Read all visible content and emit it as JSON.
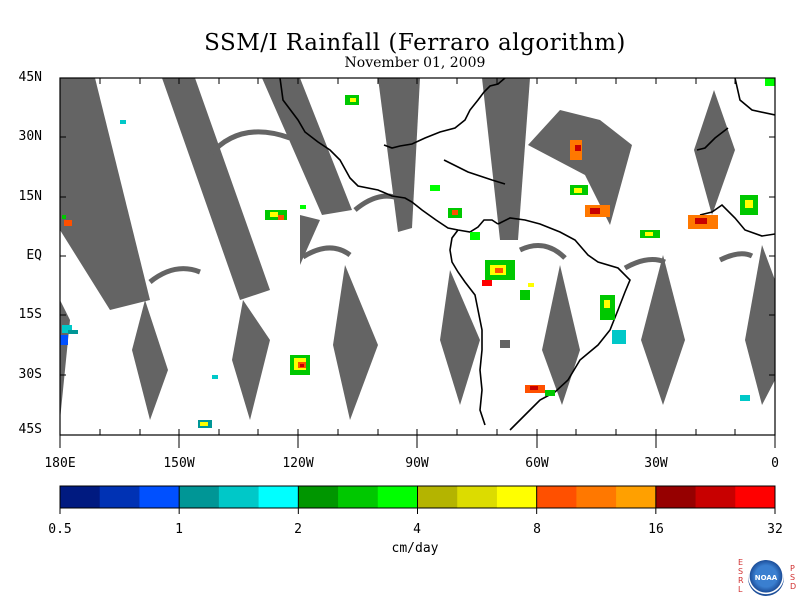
{
  "title": "SSM/I Rainfall (Ferraro algorithm)",
  "subtitle": "November 01, 2009",
  "lat_labels": [
    "45N",
    "30N",
    "15N",
    "EQ",
    "15S",
    "30S",
    "45S"
  ],
  "lon_labels": [
    "180E",
    "150W",
    "120W",
    "90W",
    "60W",
    "30W",
    "0"
  ],
  "colorbar": {
    "colors": [
      "#001a80",
      "#0032b4",
      "#0050ff",
      "#009696",
      "#00c8c8",
      "#00ffff",
      "#009600",
      "#00c800",
      "#00ff00",
      "#b4b400",
      "#dcdc00",
      "#ffff00",
      "#ff5000",
      "#ff7800",
      "#ffa000",
      "#960000",
      "#c80000",
      "#ff0000"
    ],
    "labels": [
      "0.5",
      "1",
      "2",
      "4",
      "8",
      "16",
      "32"
    ],
    "units": "cm/day"
  },
  "colors": {
    "swath_gap": "#646464",
    "land_outline": "#000000",
    "background": "#ffffff"
  },
  "logo": {
    "left_letters": "ESRL",
    "right_letters": "PSD",
    "center": "NOAA"
  }
}
